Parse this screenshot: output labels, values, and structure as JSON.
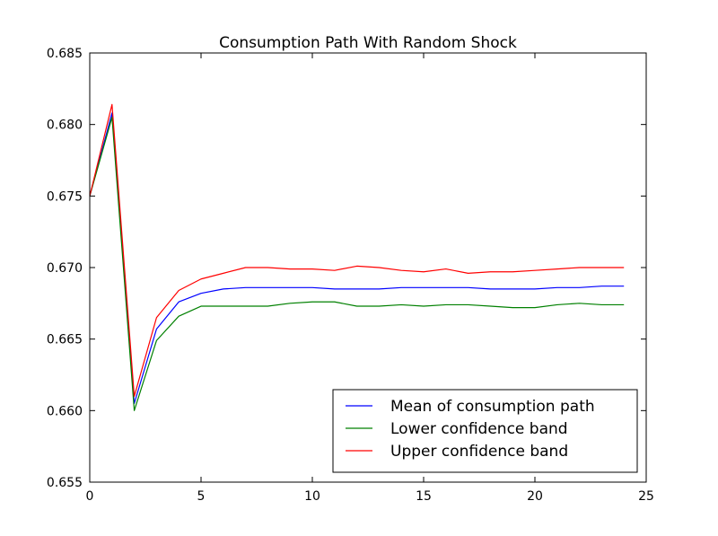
{
  "chart_data": {
    "type": "line",
    "title": "Consumption Path With Random Shock",
    "xlabel": "",
    "ylabel": "",
    "xlim": [
      0,
      25
    ],
    "ylim": [
      0.655,
      0.685
    ],
    "x_ticks": [
      0,
      5,
      10,
      15,
      20,
      25
    ],
    "x_tick_labels": [
      "0",
      "5",
      "10",
      "15",
      "20",
      "25"
    ],
    "y_ticks": [
      0.655,
      0.66,
      0.665,
      0.67,
      0.675,
      0.68,
      0.685
    ],
    "y_tick_labels": [
      "0.655",
      "0.660",
      "0.665",
      "0.670",
      "0.675",
      "0.680",
      "0.685"
    ],
    "grid": false,
    "legend_position": "lower-right",
    "x": [
      0,
      1,
      2,
      3,
      4,
      5,
      6,
      7,
      8,
      9,
      10,
      11,
      12,
      13,
      14,
      15,
      16,
      17,
      18,
      19,
      20,
      21,
      22,
      23,
      24
    ],
    "series": [
      {
        "name": "Mean of consumption path",
        "color": "#0000ff",
        "values": [
          0.675,
          0.6808,
          0.6605,
          0.6657,
          0.6676,
          0.6682,
          0.6685,
          0.6686,
          0.6686,
          0.6686,
          0.6686,
          0.6685,
          0.6685,
          0.6685,
          0.6686,
          0.6686,
          0.6686,
          0.6686,
          0.6685,
          0.6685,
          0.6685,
          0.6686,
          0.6686,
          0.6687,
          0.6687
        ]
      },
      {
        "name": "Lower confidence band",
        "color": "#008000",
        "values": [
          0.675,
          0.6805,
          0.66,
          0.6649,
          0.6666,
          0.6673,
          0.6673,
          0.6673,
          0.6673,
          0.6675,
          0.6676,
          0.6676,
          0.6673,
          0.6673,
          0.6674,
          0.6673,
          0.6674,
          0.6674,
          0.6673,
          0.6672,
          0.6672,
          0.6674,
          0.6675,
          0.6674,
          0.6674
        ]
      },
      {
        "name": "Upper confidence band",
        "color": "#ff0000",
        "values": [
          0.675,
          0.6814,
          0.661,
          0.6665,
          0.6684,
          0.6692,
          0.6696,
          0.67,
          0.67,
          0.6699,
          0.6699,
          0.6698,
          0.6701,
          0.67,
          0.6698,
          0.6697,
          0.6699,
          0.6696,
          0.6697,
          0.6697,
          0.6698,
          0.6699,
          0.67,
          0.67,
          0.67
        ]
      }
    ]
  }
}
